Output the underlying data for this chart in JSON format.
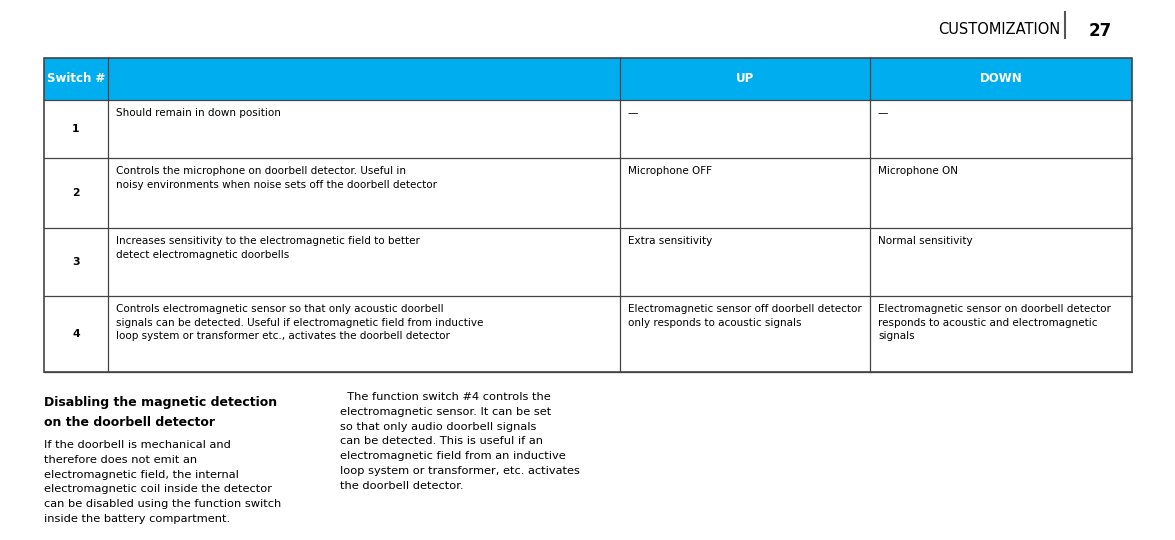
{
  "page_header": "CUSTOMIZATION",
  "page_number": "27",
  "header_bg": "#00AEEF",
  "header_text_color": "#FFFFFF",
  "table_border_color": "#444444",
  "body_text_color": "#000000",
  "header_row": [
    "Switch #",
    "",
    "UP",
    "DOWN"
  ],
  "rows": [
    {
      "switch": "1",
      "desc": "Should remain in down position",
      "up": "—",
      "down": "—"
    },
    {
      "switch": "2",
      "desc": "Controls the microphone on doorbell detector. Useful in\nnoisy environments when noise sets off the doorbell detector",
      "up": "Microphone OFF",
      "down": "Microphone ON"
    },
    {
      "switch": "3",
      "desc": "Increases sensitivity to the electromagnetic field to better\ndetect electromagnetic doorbells",
      "up": "Extra sensitivity",
      "down": "Normal sensitivity"
    },
    {
      "switch": "4",
      "desc": "Controls electromagnetic sensor so that only acoustic doorbell\nsignals can be detected. Useful if electromagnetic field from inductive\nloop system or transformer etc., activates the doorbell detector",
      "up": "Electromagnetic sensor off doorbell detector\nonly responds to acoustic signals",
      "down": "Electromagnetic sensor on doorbell detector\nresponds to acoustic and electromagnetic\nsignals"
    }
  ],
  "left_col_title_line1": "Disabling the magnetic detection",
  "left_col_title_line2": "on the doorbell detector",
  "left_col_body": "If the doorbell is mechanical and\ntherefore does not emit an\nelectromagnetic field, the internal\nelectromagnetic coil inside the detector\ncan be disabled using the function switch\ninside the battery compartment.",
  "right_col_body": "  The function switch #4 controls the\nelectromagnetic sensor. It can be set\nso that only audio doorbell signals\ncan be detected. This is useful if an\nelectromagnetic field from an inductive\nloop system or transformer, etc. activates\nthe doorbell detector.",
  "background_color": "#FFFFFF"
}
